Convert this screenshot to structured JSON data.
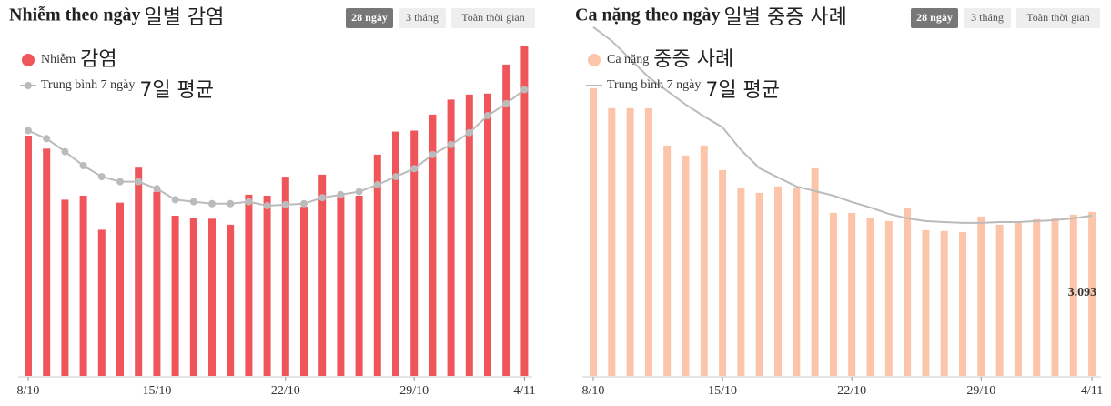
{
  "controls": [
    "28 ngày",
    "3 tháng",
    "Toàn thời gian"
  ],
  "chart_data": [
    {
      "type": "bar",
      "title": "Nhiễm theo ngày",
      "title_annotation": "일별 감염",
      "categories": [
        "8/10",
        null,
        null,
        null,
        null,
        null,
        null,
        "15/10",
        null,
        null,
        null,
        null,
        null,
        null,
        "22/10",
        null,
        null,
        null,
        null,
        null,
        null,
        "29/10",
        null,
        null,
        null,
        null,
        null,
        "4/11"
      ],
      "ylim": [
        0,
        360
      ],
      "series": [
        {
          "name": "Nhiễm",
          "annotation": "감염",
          "color": "#f0555a",
          "values": [
            240,
            227,
            176,
            180,
            146,
            173,
            208,
            184,
            160,
            158,
            157,
            151,
            181,
            180,
            199,
            169,
            201,
            180,
            180,
            221,
            244,
            245,
            261,
            276,
            281,
            282,
            311,
            330
          ]
        },
        {
          "name": "Trung bình 7 ngày",
          "annotation": "7일 평균",
          "color": "#bbbbbb",
          "markers": true,
          "values": [
            245,
            237,
            224,
            210,
            199,
            194,
            194,
            187,
            176,
            174,
            172,
            172,
            174,
            170,
            171,
            172,
            178,
            181,
            184,
            191,
            199,
            207,
            221,
            231,
            243,
            260,
            272,
            286
          ]
        }
      ]
    },
    {
      "type": "bar",
      "title": "Ca nặng theo ngày",
      "title_annotation": "일별 중증 사례",
      "categories": [
        "8/10",
        null,
        null,
        null,
        null,
        null,
        null,
        "15/10",
        null,
        null,
        null,
        null,
        null,
        null,
        "22/10",
        null,
        null,
        null,
        null,
        null,
        null,
        "29/10",
        null,
        null,
        null,
        null,
        null,
        "4/11"
      ],
      "ylim": [
        0,
        6800
      ],
      "series": [
        {
          "name": "Ca nặng",
          "annotation": "중증 사례",
          "color": "#fcc4a8",
          "annotation_color": "#f4b400",
          "values": [
            5429,
            5051,
            5051,
            5051,
            4347,
            4158,
            4347,
            3883,
            3556,
            3453,
            3574,
            3539,
            3917,
            3075,
            3075,
            2989,
            2921,
            3161,
            2749,
            2732,
            2714,
            3007,
            2852,
            2886,
            2955,
            2972,
            3041,
            3093
          ],
          "value_labels": [
            null,
            null,
            null,
            null,
            null,
            null,
            null,
            null,
            null,
            null,
            null,
            null,
            null,
            null,
            null,
            null,
            null,
            null,
            null,
            null,
            null,
            null,
            null,
            null,
            null,
            null,
            null,
            "3.093"
          ]
        },
        {
          "name": "Trung bình 7 ngày",
          "annotation": "7일 평균",
          "color": "#bbbbbb",
          "markers": false,
          "values": [
            6580,
            6322,
            5979,
            5635,
            5377,
            5120,
            4896,
            4690,
            4261,
            3917,
            3745,
            3573,
            3488,
            3402,
            3281,
            3178,
            3058,
            2972,
            2921,
            2903,
            2886,
            2886,
            2903,
            2903,
            2921,
            2938,
            2972,
            3024
          ]
        }
      ]
    }
  ]
}
